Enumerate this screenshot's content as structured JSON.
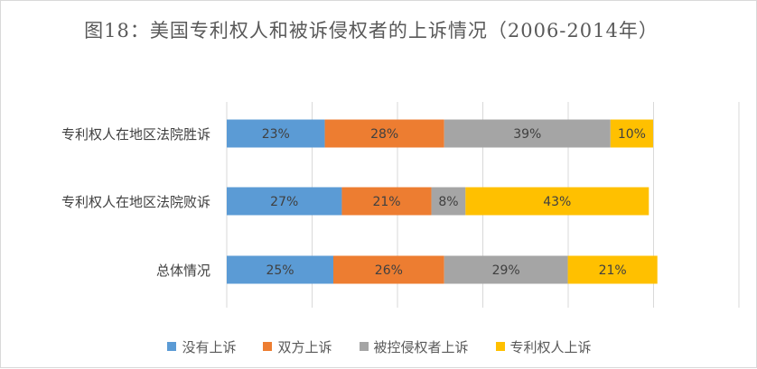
{
  "chart_data": {
    "type": "bar",
    "orientation": "horizontal",
    "stacked": "100%",
    "title": "图18：美国专利权人和被诉侵权者的上诉情况（2006-2014年）",
    "categories": [
      "专利权人在地区法院胜诉",
      "专利权人在地区法院败诉",
      "总体情况"
    ],
    "series": [
      {
        "name": "没有上诉",
        "color": "#5b9bd5",
        "values": [
          23,
          27,
          25
        ],
        "labels": [
          "23%",
          "27%",
          "25%"
        ]
      },
      {
        "name": "双方上诉",
        "color": "#ed7d31",
        "values": [
          28,
          21,
          26
        ],
        "labels": [
          "28%",
          "21%",
          "26%"
        ]
      },
      {
        "name": "被控侵权者上诉",
        "color": "#a5a5a5",
        "values": [
          39,
          8,
          29
        ],
        "labels": [
          "39%",
          "8%",
          "29%"
        ]
      },
      {
        "name": "专利权人上诉",
        "color": "#ffc000",
        "values": [
          10,
          43,
          21
        ],
        "labels": [
          "10%",
          "43%",
          "21%"
        ]
      }
    ],
    "xlim": [
      0,
      100
    ],
    "grid": true,
    "legend": "bottom"
  }
}
